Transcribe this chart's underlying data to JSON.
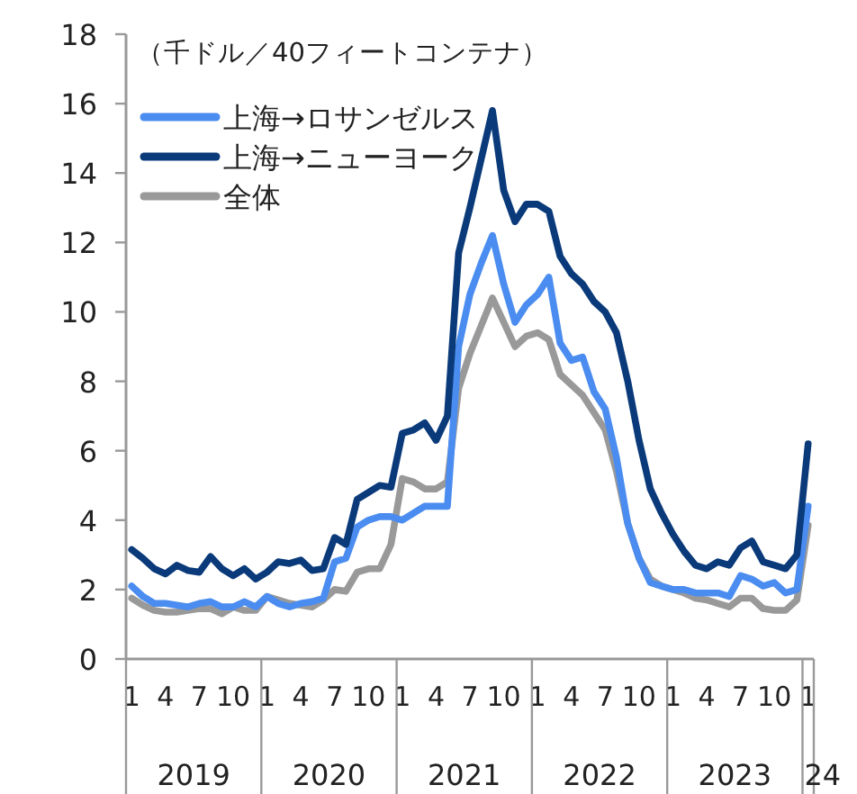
{
  "chart_data": {
    "type": "line",
    "ylabel": "（千ドル／40フィートコンテナ）",
    "categories": [
      "1",
      null,
      null,
      "4",
      null,
      null,
      "7",
      null,
      null,
      "10",
      null,
      null,
      "1",
      null,
      null,
      "4",
      null,
      null,
      "7",
      null,
      null,
      "10",
      null,
      null,
      "1",
      null,
      null,
      "4",
      null,
      null,
      "7",
      null,
      null,
      "10",
      null,
      null,
      "1",
      null,
      null,
      "4",
      null,
      null,
      "7",
      null,
      null,
      "10",
      null,
      null,
      "1",
      null,
      null,
      "4",
      null,
      null,
      "7",
      null,
      null,
      "10",
      null,
      null,
      "1"
    ],
    "annotations": [
      "2019",
      "2020",
      "2021",
      "2022",
      "2023",
      "24"
    ],
    "ylim": [
      0,
      18
    ],
    "yticks": [
      0,
      2,
      4,
      6,
      8,
      10,
      12,
      14,
      16,
      18
    ],
    "legend": "top left",
    "line_style": "solid",
    "marker": "none",
    "series": [
      {
        "name": "上海→ロサンゼルス",
        "color": "#4a8cf0",
        "values": [
          2.1,
          1.8,
          1.6,
          1.6,
          1.55,
          1.5,
          1.6,
          1.65,
          1.5,
          1.5,
          1.65,
          1.5,
          1.8,
          1.6,
          1.5,
          1.6,
          1.65,
          1.75,
          2.8,
          2.9,
          3.8,
          4.0,
          4.1,
          4.1,
          4.0,
          4.2,
          4.4,
          4.4,
          4.4,
          9.0,
          10.5,
          11.4,
          12.2,
          10.8,
          9.7,
          10.2,
          10.5,
          11.0,
          9.1,
          8.6,
          8.7,
          7.7,
          7.2,
          5.8,
          3.9,
          2.9,
          2.2,
          2.1,
          2.0,
          2.0,
          1.9,
          1.9,
          1.9,
          1.8,
          2.4,
          2.3,
          2.1,
          2.2,
          1.9,
          2.0,
          4.4
        ]
      },
      {
        "name": "上海→ニューヨーク",
        "color": "#0a3a7a",
        "values": [
          3.15,
          2.9,
          2.6,
          2.45,
          2.7,
          2.55,
          2.5,
          2.95,
          2.6,
          2.4,
          2.6,
          2.3,
          2.5,
          2.8,
          2.75,
          2.85,
          2.55,
          2.6,
          3.5,
          3.3,
          4.6,
          4.8,
          5.0,
          4.95,
          6.5,
          6.6,
          6.8,
          6.3,
          7.0,
          11.7,
          13.0,
          14.4,
          15.8,
          13.5,
          12.6,
          13.1,
          13.1,
          12.9,
          11.6,
          11.1,
          10.8,
          10.3,
          10.0,
          9.4,
          8.0,
          6.3,
          4.9,
          4.2,
          3.6,
          3.1,
          2.7,
          2.6,
          2.8,
          2.7,
          3.2,
          3.4,
          2.8,
          2.7,
          2.6,
          3.0,
          6.2
        ]
      },
      {
        "name": "全体",
        "color": "#999999",
        "values": [
          1.75,
          1.55,
          1.4,
          1.35,
          1.35,
          1.4,
          1.45,
          1.45,
          1.3,
          1.5,
          1.4,
          1.4,
          1.8,
          1.7,
          1.6,
          1.55,
          1.5,
          1.7,
          2.0,
          1.95,
          2.5,
          2.6,
          2.6,
          3.3,
          5.2,
          5.1,
          4.9,
          4.9,
          5.1,
          7.8,
          8.8,
          9.6,
          10.4,
          9.7,
          9.0,
          9.3,
          9.4,
          9.2,
          8.2,
          7.9,
          7.6,
          7.1,
          6.6,
          5.4,
          3.9,
          2.9,
          2.3,
          2.1,
          2.0,
          1.9,
          1.75,
          1.7,
          1.6,
          1.5,
          1.75,
          1.75,
          1.45,
          1.4,
          1.4,
          1.7,
          3.85
        ]
      }
    ]
  }
}
